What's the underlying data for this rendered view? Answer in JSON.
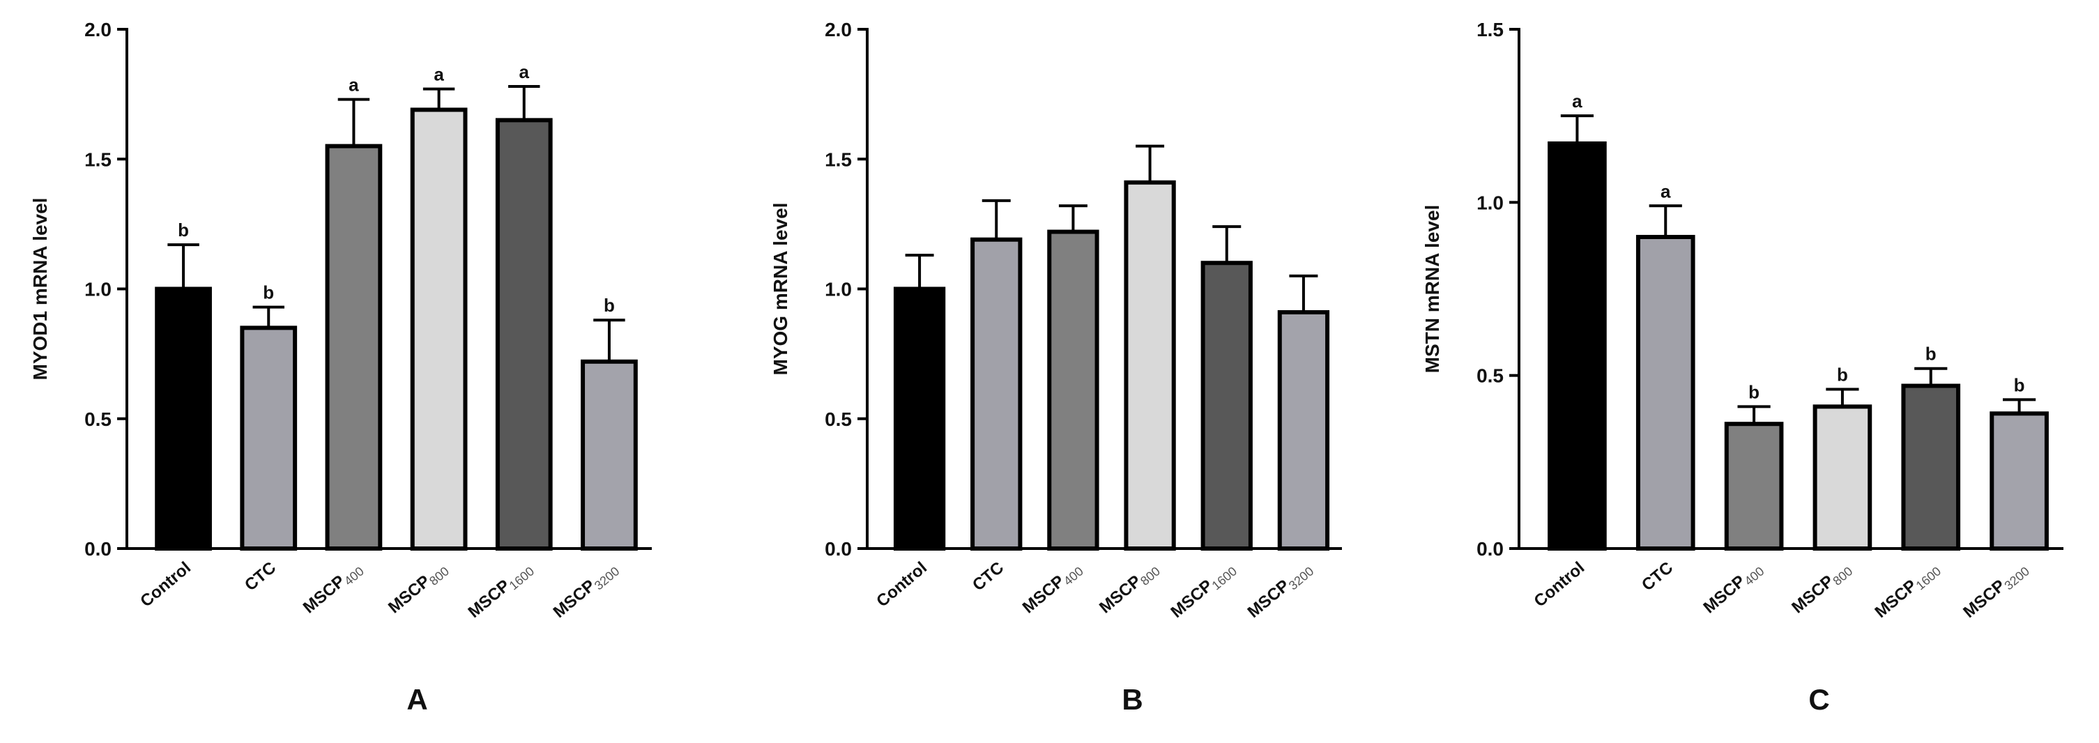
{
  "chart_data": [
    {
      "type": "bar",
      "panel_label": "A",
      "y_label": "MYOD1 mRNA level",
      "categories": [
        [
          "Control"
        ],
        [
          "CTC"
        ],
        [
          "MSCP",
          "400"
        ],
        [
          "MSCP",
          "800"
        ],
        [
          "MSCP",
          "1600"
        ],
        [
          "MSCP",
          "3200"
        ]
      ],
      "values": [
        1.0,
        0.85,
        1.55,
        1.69,
        1.65,
        0.72
      ],
      "errors": [
        0.17,
        0.08,
        0.18,
        0.08,
        0.13,
        0.16
      ],
      "annotations": [
        "b",
        "b",
        "a",
        "a",
        "a",
        "b"
      ],
      "colors": [
        "#000000",
        "#a1a1a9",
        "#808080",
        "#d9d9d9",
        "#585858",
        "#a3a3ab"
      ],
      "ylim": [
        0,
        2
      ],
      "yticks": [
        {
          "value": 0,
          "label": "0.0"
        },
        0.5,
        {
          "value": 1,
          "label": "1.0"
        },
        1.5,
        {
          "value": 2,
          "label": "2.0"
        }
      ]
    },
    {
      "type": "bar",
      "panel_label": "B",
      "y_label": "MYOG mRNA level",
      "categories": [
        [
          "Control"
        ],
        [
          "CTC"
        ],
        [
          "MSCP",
          "400"
        ],
        [
          "MSCP",
          "800"
        ],
        [
          "MSCP",
          "1600"
        ],
        [
          "MSCP",
          "3200"
        ]
      ],
      "values": [
        1.0,
        1.19,
        1.22,
        1.41,
        1.1,
        0.91
      ],
      "errors": [
        0.13,
        0.15,
        0.1,
        0.14,
        0.14,
        0.14
      ],
      "colors": [
        "#000000",
        "#a1a1a9",
        "#808080",
        "#d9d9d9",
        "#585858",
        "#a3a3ab"
      ],
      "ylim": [
        0,
        2
      ],
      "yticks": [
        {
          "value": 0,
          "label": "0.0"
        },
        0.5,
        {
          "value": 1,
          "label": "1.0"
        },
        1.5,
        {
          "value": 2,
          "label": "2.0"
        }
      ]
    },
    {
      "type": "bar",
      "panel_label": "C",
      "y_label": "MSTN mRNA level",
      "categories": [
        [
          "Control"
        ],
        [
          "CTC"
        ],
        [
          "MSCP",
          "400"
        ],
        [
          "MSCP",
          "800"
        ],
        [
          "MSCP",
          "1600"
        ],
        [
          "MSCP",
          "3200"
        ]
      ],
      "values": [
        1.17,
        0.9,
        0.36,
        0.41,
        0.47,
        0.39
      ],
      "errors": [
        0.08,
        0.09,
        0.05,
        0.05,
        0.05,
        0.04
      ],
      "annotations": [
        "a",
        "a",
        "b",
        "b",
        "b",
        "b"
      ],
      "colors": [
        "#000000",
        "#a1a1a9",
        "#808080",
        "#d9d9d9",
        "#585858",
        "#a3a3ab"
      ],
      "ylim": [
        0,
        1.5
      ],
      "yticks": [
        {
          "value": 0,
          "label": "0.0"
        },
        0.5,
        {
          "value": 1,
          "label": "1.0"
        },
        1.5
      ]
    }
  ]
}
